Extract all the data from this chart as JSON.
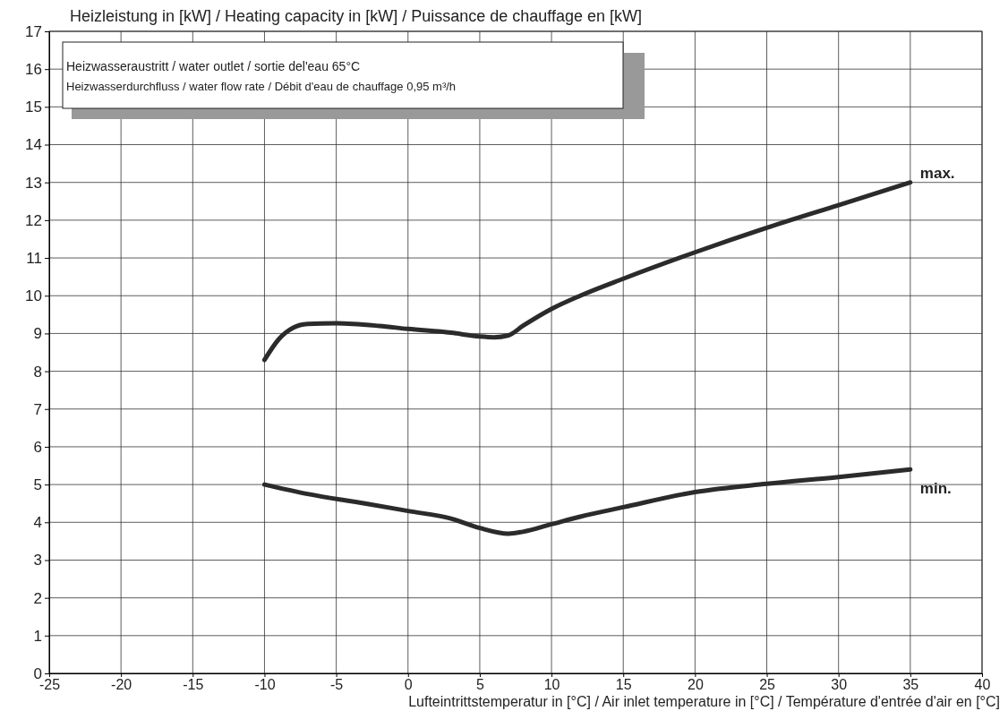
{
  "chart_data": {
    "type": "line",
    "title": "Heizleistung in [kW] / Heating capacity in [kW] / Puissance de chauffage en [kW]",
    "xlabel": "Lufteintrittstemperatur in [°C] / Air inlet temperature in [°C] / Température d'entrée d'air en [°C]",
    "annotations": [
      "Heizwasseraustritt / water outlet / sortie del'eau 65°C",
      "Heizwasserdurchfluss / water flow rate / Débit d'eau de chauffage 0,95 m³/h"
    ],
    "series": [
      {
        "name": "max.",
        "color": "#2b2b2b",
        "x": [
          -10,
          -9,
          -8,
          -7,
          -5,
          -2,
          0,
          3,
          5,
          6,
          7,
          8,
          10,
          12,
          15,
          20,
          25,
          30,
          35
        ],
        "values": [
          8.3,
          8.85,
          9.15,
          9.25,
          9.27,
          9.2,
          9.12,
          9.02,
          8.92,
          8.9,
          8.95,
          9.2,
          9.65,
          10.0,
          10.45,
          11.15,
          11.8,
          12.4,
          13.0
        ]
      },
      {
        "name": "min.",
        "color": "#2b2b2b",
        "x": [
          -10,
          -7,
          -3,
          0,
          3,
          5,
          7,
          8,
          10,
          12,
          15,
          20,
          25,
          30,
          35
        ],
        "values": [
          5.0,
          4.75,
          4.5,
          4.3,
          4.1,
          3.85,
          3.7,
          3.75,
          3.95,
          4.15,
          4.4,
          4.8,
          5.02,
          5.2,
          5.4
        ]
      }
    ],
    "xlim": [
      -25,
      40
    ],
    "xticks": [
      -25,
      -20,
      -15,
      -10,
      -5,
      0,
      5,
      10,
      15,
      20,
      25,
      30,
      35,
      40
    ],
    "ylim": [
      0,
      17
    ],
    "yticks": [
      0,
      1,
      2,
      3,
      4,
      5,
      6,
      7,
      8,
      9,
      10,
      11,
      12,
      13,
      14,
      15,
      16,
      17
    ],
    "grid": true,
    "marker": "none",
    "line_style": "solid"
  }
}
